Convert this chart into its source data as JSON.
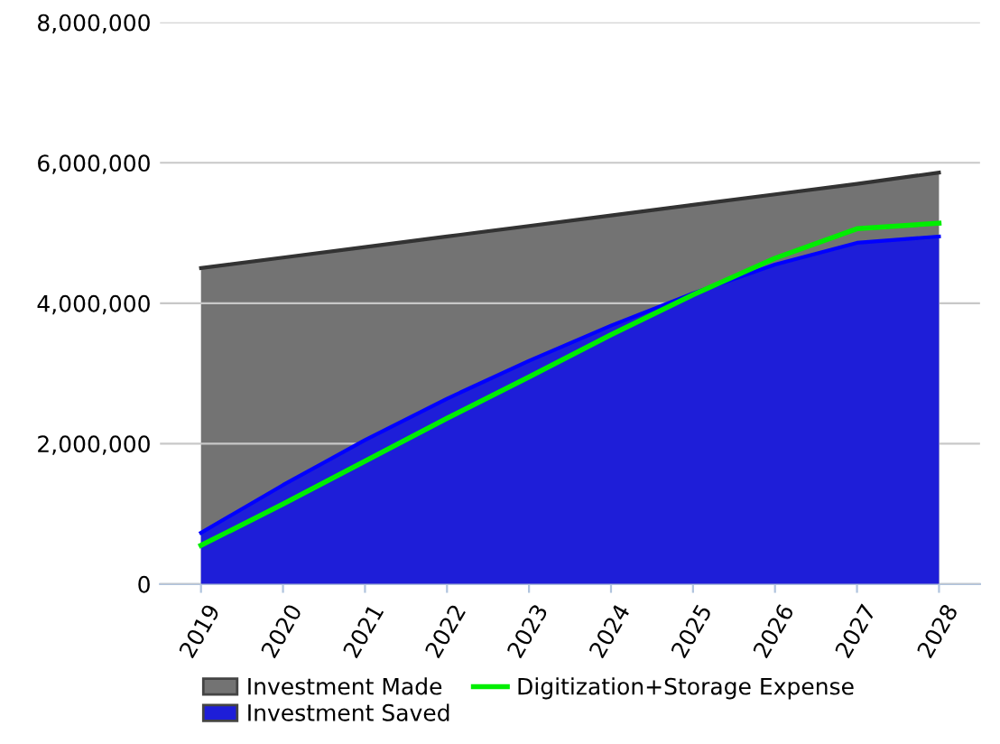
{
  "chart_data": {
    "type": "area",
    "categories": [
      "2019",
      "2020",
      "2021",
      "2022",
      "2023",
      "2024",
      "2025",
      "2026",
      "2027",
      "2028"
    ],
    "series": [
      {
        "name": "Investment Made",
        "color": "#737373",
        "values": [
          4500000,
          4650000,
          4800000,
          4950000,
          5100000,
          5250000,
          5400000,
          5550000,
          5700000,
          5860000
        ]
      },
      {
        "name": "Investment Saved",
        "color": "#1e1ed8",
        "values": [
          730000,
          1410000,
          2050000,
          2640000,
          3180000,
          3680000,
          4140000,
          4550000,
          4860000,
          4950000
        ]
      },
      {
        "name": "Digitization+Storage Expense",
        "type": "line",
        "color": "#00ee00",
        "values": [
          550000,
          1140000,
          1750000,
          2360000,
          2950000,
          3550000,
          4120000,
          4640000,
          5060000,
          5140000
        ]
      }
    ],
    "ylim": [
      0,
      8000000
    ],
    "yticks": [
      {
        "value": 0,
        "label": "0"
      },
      {
        "value": 2000000,
        "label": "2,000,000"
      },
      {
        "value": 4000000,
        "label": "4,000,000"
      },
      {
        "value": 6000000,
        "label": "6,000,000"
      },
      {
        "value": 8000000,
        "label": "8,000,000"
      }
    ],
    "grid": "y",
    "legend": "bottom"
  }
}
